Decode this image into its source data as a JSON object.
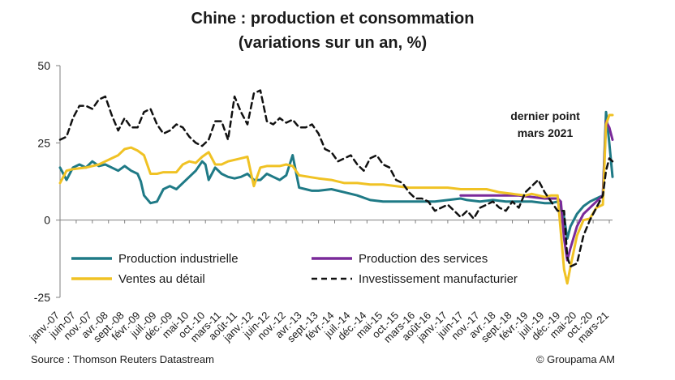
{
  "colors": {
    "industrial": "#1f7a86",
    "services": "#7a2a9a",
    "retail": "#f0c224",
    "investment": "#111111",
    "axis": "#7f7f7f",
    "text": "#1a1a1a"
  },
  "chart_data": {
    "type": "line",
    "title_line1": "Chine : production et consommation",
    "title_line2": "(variations sur un an, %)",
    "ylim": [
      -25,
      50
    ],
    "yticks": [
      "50",
      "25",
      "0",
      "-25"
    ],
    "xlim": [
      0,
      171
    ],
    "xticks": [
      "janv.-07",
      "juin-07",
      "nov.-07",
      "avr.-08",
      "sept.-08",
      "févr.-09",
      "juil.-09",
      "déc.-09",
      "mai-10",
      "oct.-10",
      "mars-11",
      "août-11",
      "janv.-12",
      "juin-12",
      "nov.-12",
      "avr.-13",
      "sept.-13",
      "févr.-14",
      "juil.-14",
      "déc.-14",
      "mai-15",
      "oct.-15",
      "mars-16",
      "août-16",
      "janv.-17",
      "juin-17",
      "nov.-17",
      "avr.-18",
      "sept.-18",
      "févr.-19",
      "juil.-19",
      "déc.-19",
      "mai-20",
      "oct.-20",
      "mars-21"
    ],
    "annotation": [
      "dernier point",
      "mars 2021"
    ],
    "source": "Source : Thomson Reuters Datastream",
    "copyright": "© Groupama AM",
    "series": [
      {
        "name": "Production industrielle",
        "key": "industrial",
        "dash": false,
        "x": [
          0,
          2,
          4,
          6,
          8,
          10,
          12,
          14,
          16,
          18,
          20,
          22,
          24,
          25,
          26,
          28,
          30,
          32,
          34,
          36,
          38,
          40,
          42,
          44,
          45,
          46,
          48,
          50,
          52,
          54,
          56,
          58,
          60,
          62,
          64,
          66,
          68,
          70,
          72,
          74,
          76,
          78,
          80,
          84,
          88,
          92,
          96,
          100,
          104,
          108,
          112,
          116,
          120,
          124,
          126,
          130,
          134,
          138,
          142,
          146,
          150,
          152,
          154,
          156,
          157,
          158,
          160,
          162,
          164,
          166,
          168,
          169,
          170,
          171
        ],
        "y": [
          17,
          13,
          17,
          18,
          17,
          19,
          17.5,
          18,
          17,
          16,
          17.5,
          16,
          15,
          12.5,
          8,
          5.5,
          6,
          10,
          11,
          10,
          12,
          14,
          16,
          19,
          18,
          13,
          17,
          15,
          14,
          13.5,
          14,
          15,
          13,
          13,
          15,
          14,
          13,
          14.5,
          21,
          10.5,
          10,
          9.5,
          9.5,
          10,
          9,
          8,
          6.5,
          6,
          6,
          6,
          6,
          6,
          6.5,
          7,
          6.5,
          6,
          6.5,
          6,
          6,
          6,
          5.5,
          5.5,
          6,
          1,
          -6,
          -2,
          2,
          4.5,
          6,
          7,
          8,
          35,
          25,
          14
        ]
      },
      {
        "name": "Production des services",
        "key": "services",
        "dash": false,
        "x": [
          124,
          130,
          134,
          138,
          142,
          146,
          150,
          154,
          155,
          156,
          157,
          158,
          160,
          162,
          164,
          166,
          168,
          169,
          170,
          171
        ],
        "y": [
          8,
          8,
          8,
          8,
          8,
          7.5,
          7,
          7,
          6,
          -6,
          -13,
          -9,
          -2,
          2,
          4,
          6,
          8,
          32,
          30,
          26
        ]
      },
      {
        "name": "Ventes au détail",
        "key": "retail",
        "dash": false,
        "x": [
          0,
          2,
          4,
          8,
          12,
          16,
          18,
          20,
          22,
          24,
          26,
          28,
          30,
          32,
          34,
          36,
          38,
          40,
          42,
          44,
          46,
          48,
          50,
          52,
          54,
          56,
          58,
          60,
          62,
          64,
          66,
          68,
          70,
          72,
          74,
          80,
          84,
          88,
          92,
          96,
          100,
          104,
          108,
          112,
          116,
          120,
          124,
          128,
          132,
          136,
          140,
          144,
          146,
          148,
          150,
          152,
          154,
          156,
          157,
          158,
          160,
          162,
          164,
          166,
          168,
          169,
          170,
          171
        ],
        "y": [
          12,
          16,
          16.5,
          17,
          18,
          20,
          21,
          23,
          23.5,
          22.5,
          21,
          15,
          15,
          15.5,
          15.5,
          15.5,
          18,
          19,
          18.5,
          20.5,
          22,
          18,
          18,
          19,
          19.5,
          20,
          20.5,
          11,
          17,
          17.5,
          17.5,
          17.5,
          18,
          17.5,
          14.5,
          13.5,
          13,
          12,
          12,
          11.5,
          11.5,
          11,
          10.5,
          10.5,
          10.5,
          10.5,
          10,
          10,
          10,
          9,
          8.5,
          8,
          8.5,
          8,
          7.5,
          8,
          8,
          -16,
          -20.5,
          -15,
          -5,
          0,
          0.5,
          4,
          5,
          31,
          34,
          34
        ]
      },
      {
        "name": "Investissement manufacturier",
        "key": "investment",
        "dash": true,
        "x": [
          0,
          2,
          4,
          6,
          8,
          10,
          12,
          14,
          16,
          18,
          20,
          22,
          24,
          26,
          28,
          30,
          32,
          34,
          36,
          38,
          40,
          42,
          44,
          46,
          48,
          50,
          52,
          54,
          56,
          58,
          60,
          62,
          64,
          66,
          68,
          70,
          72,
          74,
          76,
          78,
          80,
          82,
          84,
          86,
          88,
          90,
          92,
          94,
          96,
          98,
          100,
          102,
          104,
          106,
          108,
          110,
          112,
          114,
          116,
          118,
          120,
          122,
          124,
          126,
          128,
          130,
          132,
          134,
          136,
          138,
          140,
          142,
          144,
          146,
          148,
          150,
          152,
          154,
          156,
          157,
          158,
          160,
          162,
          164,
          166,
          168,
          169,
          170,
          171
        ],
        "y": [
          26,
          27,
          33,
          37,
          37,
          36,
          39,
          40,
          34,
          29,
          33,
          30,
          30,
          35,
          36,
          31,
          28,
          29,
          31,
          30,
          27,
          25,
          24,
          26,
          32,
          32,
          26,
          40,
          35,
          31,
          41,
          42,
          32,
          31,
          33,
          31.5,
          32.5,
          30,
          30,
          31,
          28,
          23,
          22,
          19,
          20,
          21,
          18,
          16,
          20,
          21,
          18,
          17,
          13,
          12,
          9,
          7,
          7,
          6,
          3,
          4,
          5,
          3,
          1,
          3,
          0.5,
          4,
          5,
          6,
          4,
          3,
          6,
          4,
          9,
          11,
          13,
          9,
          6,
          3,
          3,
          -12,
          -15,
          -14,
          -5,
          0,
          4,
          8,
          16,
          20,
          19
        ]
      }
    ]
  }
}
